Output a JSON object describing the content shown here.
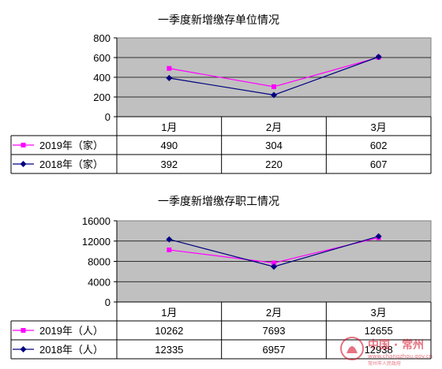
{
  "chart_data": [
    {
      "type": "line",
      "title": "一季度新增缴存单位情况",
      "categories": [
        "1月",
        "2月",
        "3月"
      ],
      "ylim": [
        0,
        800
      ],
      "yticks": [
        0,
        200,
        400,
        600,
        800
      ],
      "grid": true,
      "legend": "data-table",
      "series": [
        {
          "name": "2019年（家）",
          "values": [
            490,
            304,
            602
          ],
          "color": "#ff00ff",
          "marker": "square"
        },
        {
          "name": "2018年（家）",
          "values": [
            392,
            220,
            607
          ],
          "color": "#000080",
          "marker": "diamond"
        }
      ]
    },
    {
      "type": "line",
      "title": "一季度新增缴存职工情况",
      "categories": [
        "1月",
        "2月",
        "3月"
      ],
      "ylim": [
        0,
        16000
      ],
      "yticks": [
        0,
        4000,
        8000,
        12000,
        16000
      ],
      "grid": true,
      "legend": "data-table",
      "series": [
        {
          "name": "2019年（人）",
          "values": [
            10262,
            7693,
            12655
          ],
          "color": "#ff00ff",
          "marker": "square"
        },
        {
          "name": "2018年（人）",
          "values": [
            12335,
            6957,
            12938
          ],
          "color": "#000080",
          "marker": "diamond"
        }
      ]
    }
  ],
  "watermark": {
    "text": "中国 · 常州",
    "url": "www.changzhou.gov.cn",
    "org": "常州市人民政府",
    "color": "#d0021b"
  }
}
